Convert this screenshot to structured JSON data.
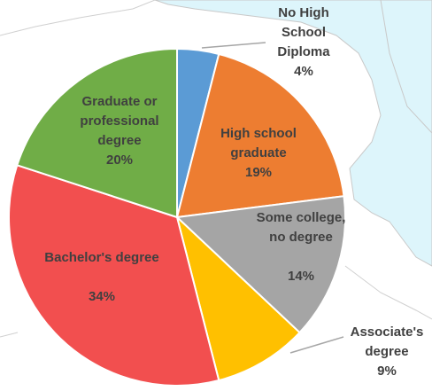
{
  "chart_data": {
    "type": "pie",
    "categories": [
      "No High School Diploma",
      "High school graduate",
      "Some college, no degree",
      "Associate's degree",
      "Bachelor's degree",
      "Graduate or professional degree"
    ],
    "values": [
      4,
      19,
      14,
      9,
      34,
      20
    ],
    "value_labels": [
      "4%",
      "19%",
      "14%",
      "9%",
      "34%",
      "20%"
    ],
    "colors": [
      "#5b9bd5",
      "#ed7d31",
      "#a5a5a5",
      "#ffc000",
      "#f24f4f",
      "#70ad47"
    ]
  }
}
